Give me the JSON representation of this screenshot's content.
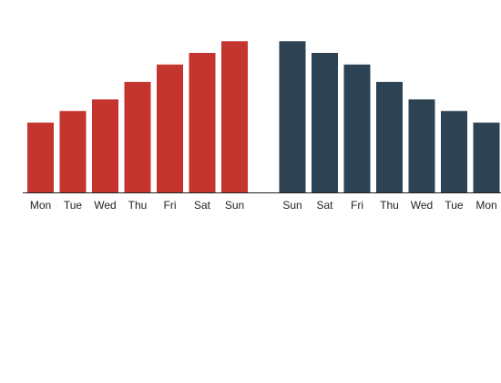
{
  "chart_data": {
    "type": "bar",
    "categories": [
      "Mon",
      "Tue",
      "Wed",
      "Thu",
      "Fri",
      "Sat",
      "Sun",
      "Sun",
      "Sat",
      "Fri",
      "Thu",
      "Wed",
      "Tue",
      "Mon"
    ],
    "values": [
      6,
      7,
      8,
      9.5,
      11,
      12,
      13,
      13,
      12,
      11,
      9.5,
      8,
      7,
      6
    ],
    "colors": [
      "#c43530",
      "#c43530",
      "#c43530",
      "#c43530",
      "#c43530",
      "#c43530",
      "#c43530",
      "#2d4354",
      "#2d4354",
      "#2d4354",
      "#2d4354",
      "#2d4354",
      "#2d4354",
      "#2d4354"
    ],
    "title": "",
    "xlabel": "",
    "ylabel": "",
    "ylim": [
      0,
      16
    ],
    "grid": false,
    "axis_color": "#222222"
  }
}
